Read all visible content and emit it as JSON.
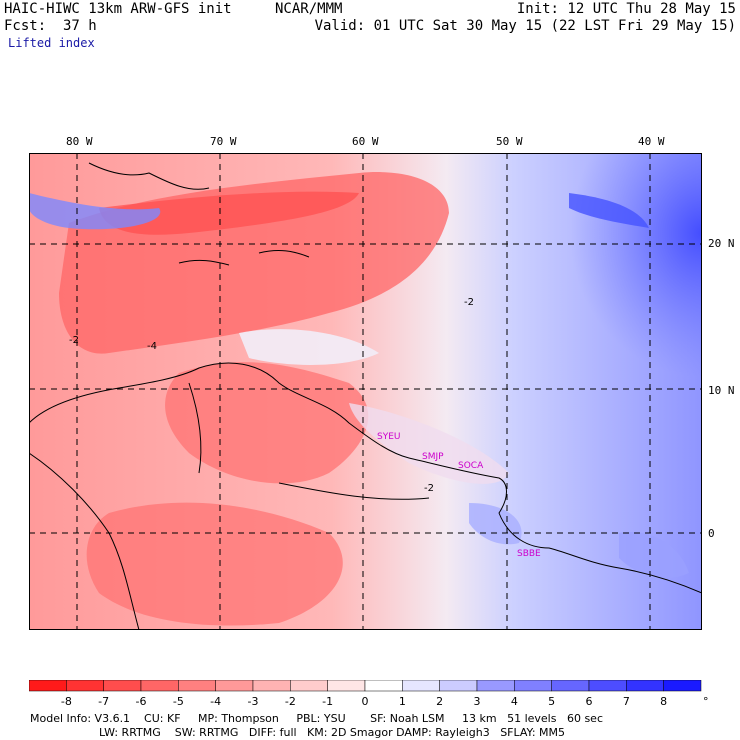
{
  "header": {
    "model": "HAIC-HIWC 13km ARW-GFS init",
    "org": "NCAR/MMM",
    "init": "Init: 12 UTC Thu 28 May 15",
    "fcst": "Fcst:  37 h",
    "valid": "Valid: 01 UTC Sat 30 May 15 (22 LST Fri 29 May 15)",
    "field": "Lifted index"
  },
  "map": {
    "lon_labels": [
      "80 W",
      "70 W",
      "60 W",
      "50 W",
      "40 W"
    ],
    "lat_labels": [
      "20 N",
      "10 N",
      "0"
    ],
    "stations": [
      "SYEU",
      "SMJP",
      "SOCA",
      "SBBE"
    ],
    "colors": {
      "land_outline": "#000000",
      "grid": "#000000",
      "station": "#cc00cc"
    }
  },
  "colorbar": {
    "labels": [
      "-8",
      "-7",
      "-6",
      "-5",
      "-4",
      "-3",
      "-2",
      "-1",
      "0",
      "1",
      "2",
      "3",
      "4",
      "5",
      "6",
      "7",
      "8"
    ],
    "unit": "°C",
    "colors": [
      "#ff1a1a",
      "#ff3333",
      "#ff4d4d",
      "#ff6666",
      "#ff8080",
      "#ff9999",
      "#ffb3b3",
      "#ffcccc",
      "#ffe6e6",
      "#ffffff",
      "#e6e6ff",
      "#ccccff",
      "#9999ff",
      "#8080ff",
      "#6666ff",
      "#4d4dff",
      "#3333ff",
      "#1a1aff"
    ]
  },
  "footer": {
    "line1": "Model Info: V3.6.1    CU: KF     MP: Thompson     PBL: YSU       SF: Noah LSM     13 km   51 levels   60 sec",
    "line2": "LW: RRTMG    SW: RRTMG   DIFF: full   KM: 2D Smagor DAMP: Rayleigh3   SFLAY: MM5"
  }
}
